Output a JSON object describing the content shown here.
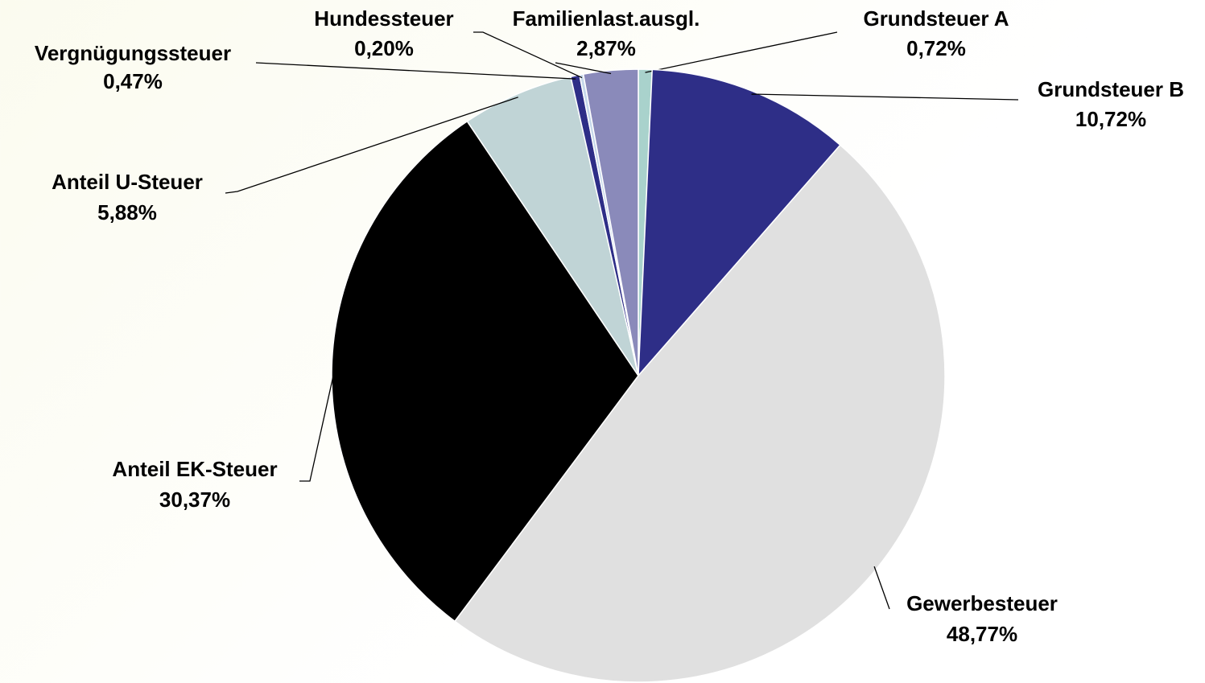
{
  "chart_data": {
    "type": "pie",
    "categories": [
      "Grundsteuer A",
      "Grundsteuer B",
      "Gewerbesteuer",
      "Anteil EK-Steuer",
      "Anteil U-Steuer",
      "Vergnügungssteuer",
      "Hundessteuer",
      "Familienlast.ausgl."
    ],
    "values": [
      0.72,
      10.72,
      48.77,
      30.37,
      5.88,
      0.47,
      0.2,
      2.87
    ],
    "value_labels": [
      "0,72%",
      "10,72%",
      "48,77%",
      "30,37%",
      "5,88%",
      "0,47%",
      "0,20%",
      "2,87%"
    ],
    "colors": [
      "#a9d2cc",
      "#2e2e87",
      "#e0e0e0",
      "#000000",
      "#c0d4d6",
      "#2e2e87",
      "#c6d8ea",
      "#8a8aba"
    ]
  }
}
